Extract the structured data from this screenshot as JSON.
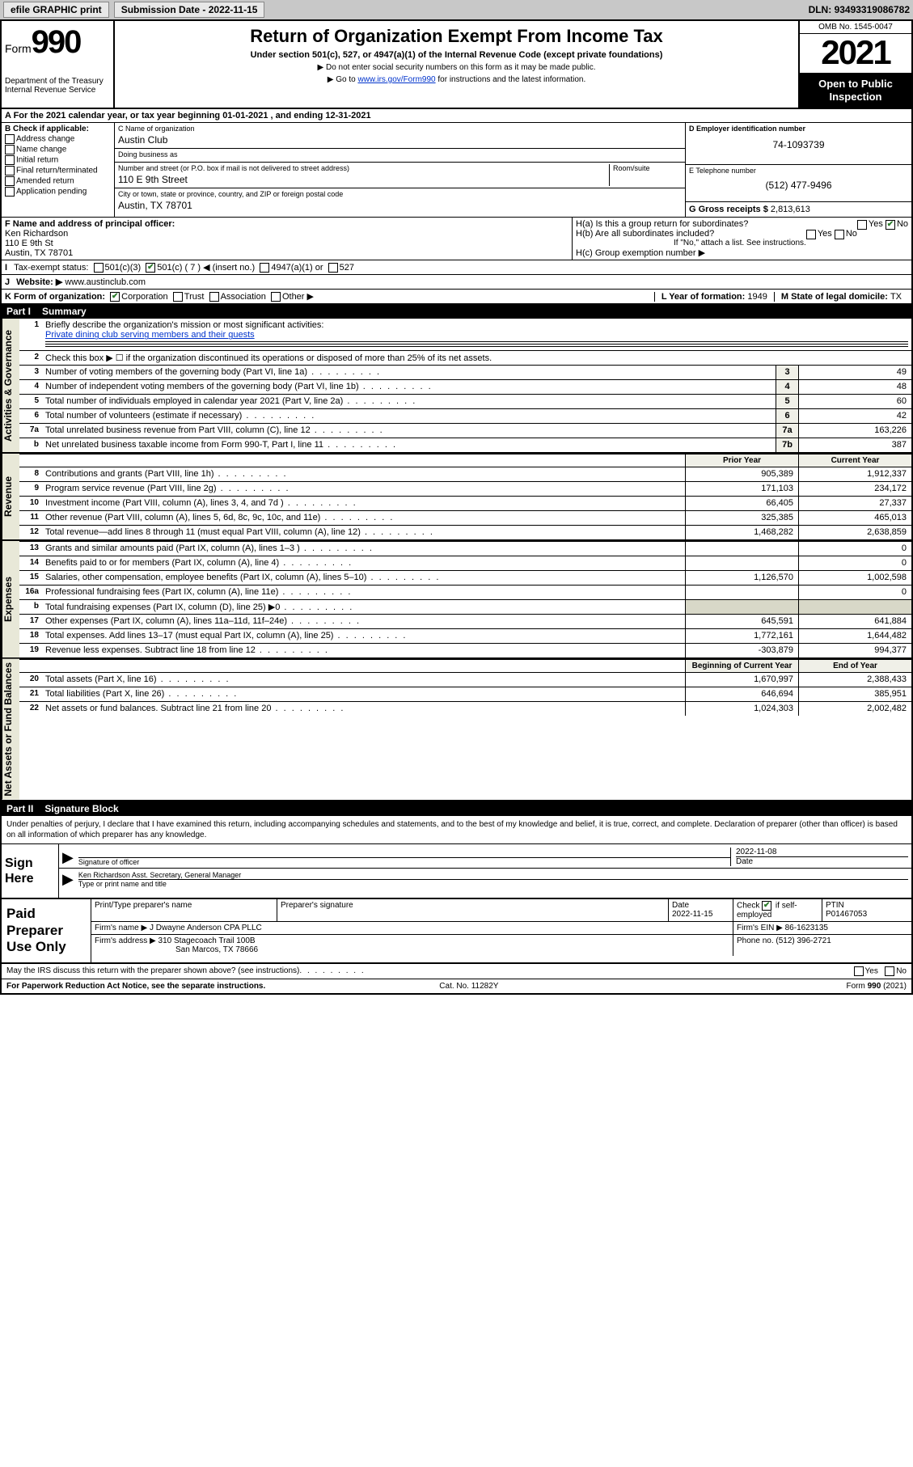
{
  "topbar": {
    "efile": "efile GRAPHIC print",
    "sub_label": "Submission Date - ",
    "sub_date": "2022-11-15",
    "dln_label": "DLN: ",
    "dln": "93493319086782"
  },
  "header": {
    "form_word": "Form",
    "form_no": "990",
    "title": "Return of Organization Exempt From Income Tax",
    "subtitle": "Under section 501(c), 527, or 4947(a)(1) of the Internal Revenue Code (except private foundations)",
    "note1": "▶ Do not enter social security numbers on this form as it may be made public.",
    "note2_pre": "▶ Go to ",
    "note2_link": "www.irs.gov/Form990",
    "note2_post": " for instructions and the latest information.",
    "dept": "Department of the Treasury\nInternal Revenue Service",
    "omb": "OMB No. 1545-0047",
    "year": "2021",
    "inspection": "Open to Public Inspection"
  },
  "row_a": "A For the 2021 calendar year, or tax year beginning 01-01-2021     , and ending 12-31-2021",
  "col_b": {
    "title": "B Check if applicable:",
    "items": [
      "Address change",
      "Name change",
      "Initial return",
      "Final return/terminated",
      "Amended return",
      "Application pending"
    ]
  },
  "col_c": {
    "name_lab": "C Name of organization",
    "name": "Austin Club",
    "dba_lab": "Doing business as",
    "dba": "",
    "addr_lab": "Number and street (or P.O. box if mail is not delivered to street address)",
    "room_lab": "Room/suite",
    "addr": "110 E 9th Street",
    "city_lab": "City or town, state or province, country, and ZIP or foreign postal code",
    "city": "Austin, TX  78701"
  },
  "col_d": {
    "ein_lab": "D Employer identification number",
    "ein": "74-1093739",
    "tel_lab": "E Telephone number",
    "tel": "(512) 477-9496",
    "gross_lab": "G Gross receipts $ ",
    "gross": "2,813,613"
  },
  "row_f": {
    "lab": "F  Name and address of principal officer:",
    "name": "Ken Richardson",
    "addr1": "110 E 9th St",
    "addr2": "Austin, TX  78701"
  },
  "row_h": {
    "ha": "H(a)  Is this a group return for subordinates?",
    "hb": "H(b)  Are all subordinates included?",
    "hb_note": "If \"No,\" attach a list. See instructions.",
    "hc": "H(c)  Group exemption number ▶",
    "yes": "Yes",
    "no": "No"
  },
  "row_i": {
    "lab": "I",
    "title": "Tax-exempt status:",
    "opts": [
      "501(c)(3)",
      "501(c) ( 7 ) ◀ (insert no.)",
      "4947(a)(1) or",
      "527"
    ]
  },
  "row_j": {
    "lab": "J",
    "title": "Website: ▶",
    "val": "www.austinclub.com"
  },
  "row_k": {
    "lab": "K Form of organization:",
    "opts": [
      "Corporation",
      "Trust",
      "Association",
      "Other ▶"
    ]
  },
  "row_l": {
    "lab": "L Year of formation: ",
    "val": "1949"
  },
  "row_m": {
    "lab": "M State of legal domicile: ",
    "val": "TX"
  },
  "part1": {
    "num": "Part I",
    "title": "Summary"
  },
  "summary": {
    "gov_label": "Activities & Governance",
    "rev_label": "Revenue",
    "exp_label": "Expenses",
    "net_label": "Net Assets or Fund Balances",
    "line1_lab": "Briefly describe the organization's mission or most significant activities:",
    "line1_val": "Private dining club serving members and their guests",
    "line2": "Check this box ▶ ☐  if the organization discontinued its operations or disposed of more than 25% of its net assets.",
    "rows_gov": [
      {
        "n": "3",
        "d": "Number of voting members of the governing body (Part VI, line 1a)",
        "b": "3",
        "v": "49"
      },
      {
        "n": "4",
        "d": "Number of independent voting members of the governing body (Part VI, line 1b)",
        "b": "4",
        "v": "48"
      },
      {
        "n": "5",
        "d": "Total number of individuals employed in calendar year 2021 (Part V, line 2a)",
        "b": "5",
        "v": "60"
      },
      {
        "n": "6",
        "d": "Total number of volunteers (estimate if necessary)",
        "b": "6",
        "v": "42"
      },
      {
        "n": "7a",
        "d": "Total unrelated business revenue from Part VIII, column (C), line 12",
        "b": "7a",
        "v": "163,226"
      },
      {
        "n": "b",
        "d": "Net unrelated business taxable income from Form 990-T, Part I, line 11",
        "b": "7b",
        "v": "387"
      }
    ],
    "hdr_prior": "Prior Year",
    "hdr_curr": "Current Year",
    "rows_rev": [
      {
        "n": "8",
        "d": "Contributions and grants (Part VIII, line 1h)",
        "p": "905,389",
        "c": "1,912,337"
      },
      {
        "n": "9",
        "d": "Program service revenue (Part VIII, line 2g)",
        "p": "171,103",
        "c": "234,172"
      },
      {
        "n": "10",
        "d": "Investment income (Part VIII, column (A), lines 3, 4, and 7d )",
        "p": "66,405",
        "c": "27,337"
      },
      {
        "n": "11",
        "d": "Other revenue (Part VIII, column (A), lines 5, 6d, 8c, 9c, 10c, and 11e)",
        "p": "325,385",
        "c": "465,013"
      },
      {
        "n": "12",
        "d": "Total revenue—add lines 8 through 11 (must equal Part VIII, column (A), line 12)",
        "p": "1,468,282",
        "c": "2,638,859"
      }
    ],
    "rows_exp": [
      {
        "n": "13",
        "d": "Grants and similar amounts paid (Part IX, column (A), lines 1–3 )",
        "p": "",
        "c": "0"
      },
      {
        "n": "14",
        "d": "Benefits paid to or for members (Part IX, column (A), line 4)",
        "p": "",
        "c": "0"
      },
      {
        "n": "15",
        "d": "Salaries, other compensation, employee benefits (Part IX, column (A), lines 5–10)",
        "p": "1,126,570",
        "c": "1,002,598"
      },
      {
        "n": "16a",
        "d": "Professional fundraising fees (Part IX, column (A), line 11e)",
        "p": "",
        "c": "0"
      },
      {
        "n": "b",
        "d": "Total fundraising expenses (Part IX, column (D), line 25) ▶0",
        "p": "shade",
        "c": "shade"
      },
      {
        "n": "17",
        "d": "Other expenses (Part IX, column (A), lines 11a–11d, 11f–24e)",
        "p": "645,591",
        "c": "641,884"
      },
      {
        "n": "18",
        "d": "Total expenses. Add lines 13–17 (must equal Part IX, column (A), line 25)",
        "p": "1,772,161",
        "c": "1,644,482"
      },
      {
        "n": "19",
        "d": "Revenue less expenses. Subtract line 18 from line 12",
        "p": "-303,879",
        "c": "994,377"
      }
    ],
    "hdr_beg": "Beginning of Current Year",
    "hdr_end": "End of Year",
    "rows_net": [
      {
        "n": "20",
        "d": "Total assets (Part X, line 16)",
        "p": "1,670,997",
        "c": "2,388,433"
      },
      {
        "n": "21",
        "d": "Total liabilities (Part X, line 26)",
        "p": "646,694",
        "c": "385,951"
      },
      {
        "n": "22",
        "d": "Net assets or fund balances. Subtract line 21 from line 20",
        "p": "1,024,303",
        "c": "2,002,482"
      }
    ]
  },
  "part2": {
    "num": "Part II",
    "title": "Signature Block"
  },
  "sig": {
    "intro": "Under penalties of perjury, I declare that I have examined this return, including accompanying schedules and statements, and to the best of my knowledge and belief, it is true, correct, and complete. Declaration of preparer (other than officer) is based on all information of which preparer has any knowledge.",
    "here": "Sign Here",
    "sig_lab": "Signature of officer",
    "date_lab": "Date",
    "date_val": "2022-11-08",
    "name": "Ken Richardson  Asst. Secretary, General Manager",
    "name_lab": "Type or print name and title"
  },
  "prep": {
    "title": "Paid Preparer Use Only",
    "h_print": "Print/Type preparer's name",
    "h_sig": "Preparer's signature",
    "h_date": "Date",
    "date": "2022-11-15",
    "h_check": "Check",
    "h_check2": "if self-employed",
    "h_ptin": "PTIN",
    "ptin": "P01467053",
    "firm_lab": "Firm's name      ▶",
    "firm": "J Dwayne Anderson CPA PLLC",
    "ein_lab": "Firm's EIN ▶",
    "ein": "86-1623135",
    "addr_lab": "Firm's address ▶",
    "addr1": "310 Stagecoach Trail 100B",
    "addr2": "San Marcos, TX  78666",
    "phone_lab": "Phone no. ",
    "phone": "(512) 396-2721"
  },
  "footer": {
    "q": "May the IRS discuss this return with the preparer shown above? (see instructions)",
    "yes": "Yes",
    "no": "No",
    "pra": "For Paperwork Reduction Act Notice, see the separate instructions.",
    "cat": "Cat. No. 11282Y",
    "form": "Form 990 (2021)"
  }
}
